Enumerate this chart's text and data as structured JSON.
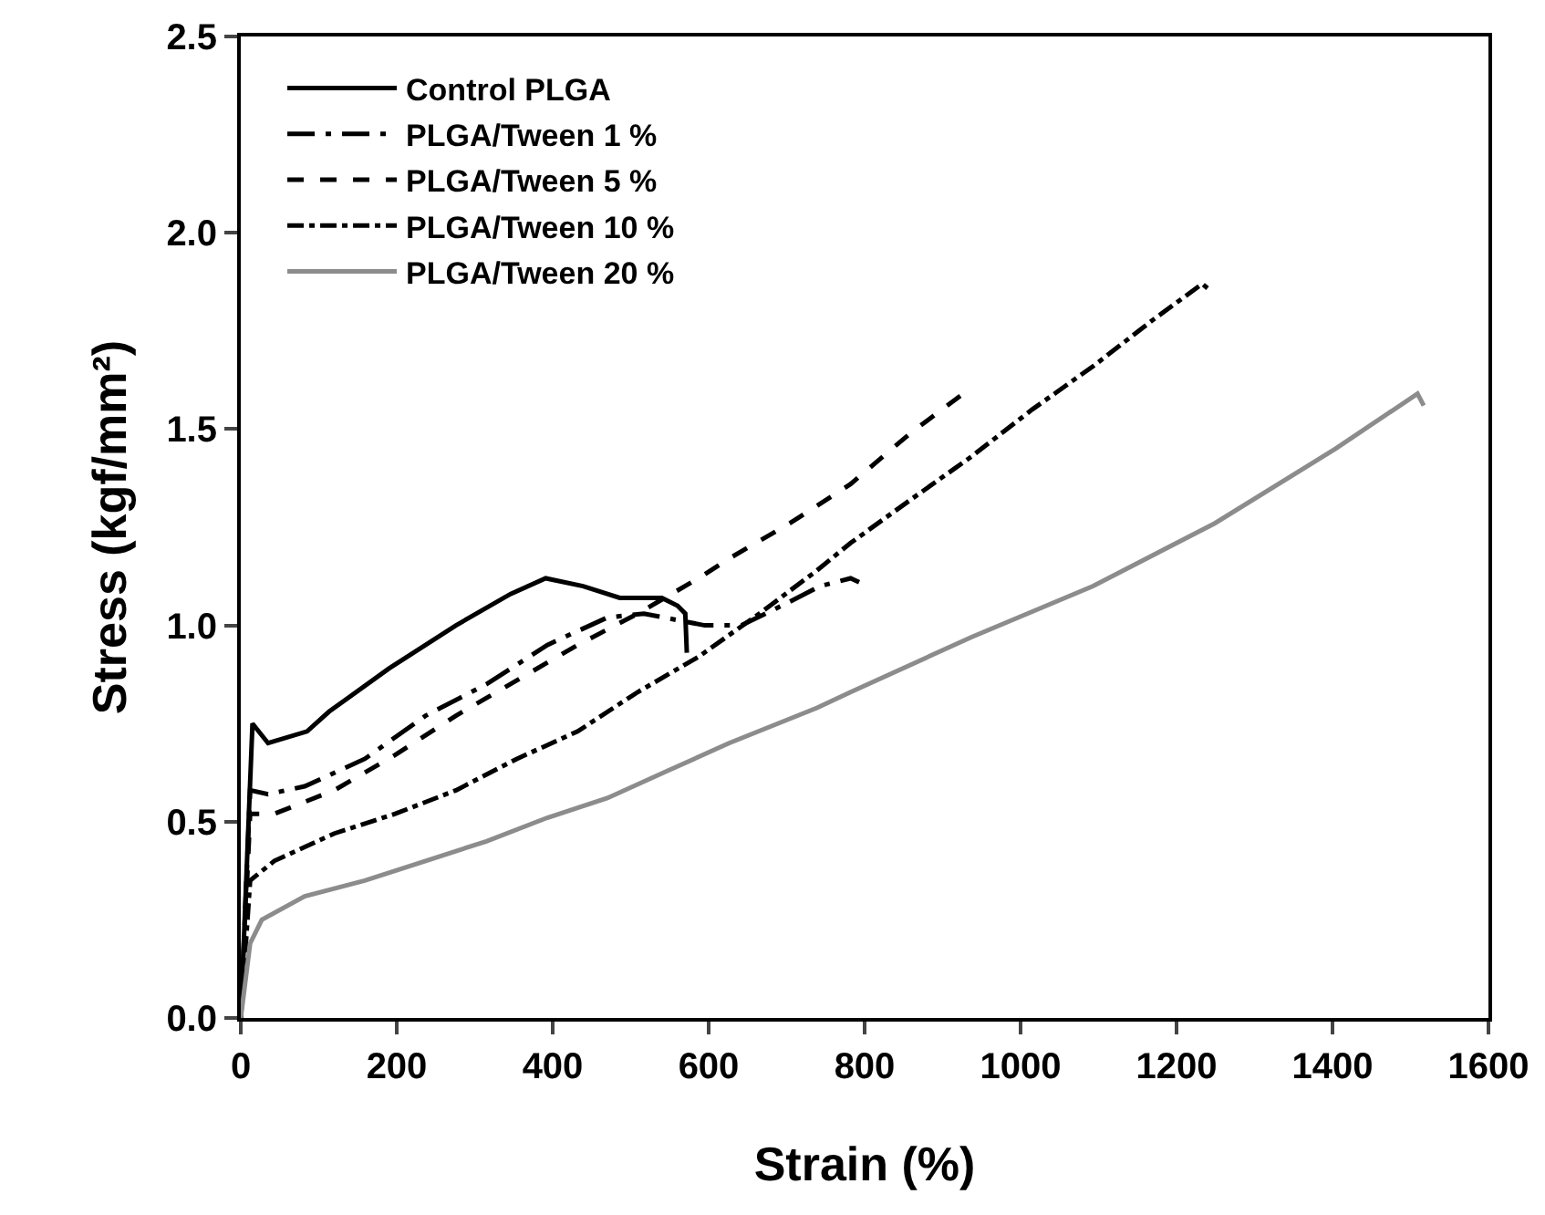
{
  "chart_data": {
    "type": "line",
    "xlabel": "Strain (%)",
    "ylabel": "Stress (kgf/mm²)",
    "xlim": [
      0,
      1600
    ],
    "xticks": [
      0,
      200,
      400,
      600,
      800,
      1000,
      1200,
      1400,
      1600
    ],
    "ylim": [
      0,
      2.5
    ],
    "yticks": [
      {
        "value": 0,
        "label": "0.0"
      },
      {
        "value": 0.5,
        "label": "0.5"
      },
      {
        "value": 1,
        "label": "1.0"
      },
      {
        "value": 1.5,
        "label": "1.5"
      },
      {
        "value": 2,
        "label": "2.0"
      },
      {
        "value": 2.5,
        "label": "2.5"
      }
    ],
    "grid": false,
    "legend": "top left",
    "marker": "none",
    "series": [
      {
        "name": "Control PLGA",
        "color": "#000000",
        "line_style": "solid",
        "x": [
          0,
          15,
          35,
          85,
          113,
          190,
          276,
          346,
          391,
          439,
          486,
          540,
          560,
          570,
          572
        ],
        "values": [
          0,
          0.75,
          0.7,
          0.73,
          0.78,
          0.89,
          1.0,
          1.08,
          1.12,
          1.1,
          1.07,
          1.07,
          1.05,
          1.03,
          0.93
        ]
      },
      {
        "name": "PLGA/Tween 1 %",
        "color": "#000000",
        "line_style": "longdashdot",
        "x": [
          0,
          12,
          35,
          82,
          159,
          237,
          315,
          393,
          470,
          517,
          595,
          642,
          704,
          743,
          782,
          793
        ],
        "values": [
          0,
          0.58,
          0.57,
          0.59,
          0.66,
          0.77,
          0.85,
          0.95,
          1.02,
          1.03,
          1.0,
          1.0,
          1.06,
          1.1,
          1.12,
          1.11
        ]
      },
      {
        "name": "PLGA/Tween 5 %",
        "color": "#000000",
        "line_style": "dash",
        "x": [
          0,
          12,
          43,
          120,
          198,
          276,
          354,
          432,
          509,
          587,
          626,
          704,
          782,
          859,
          933
        ],
        "values": [
          0,
          0.52,
          0.52,
          0.58,
          0.67,
          0.77,
          0.86,
          0.95,
          1.03,
          1.12,
          1.17,
          1.26,
          1.36,
          1.49,
          1.6
        ]
      },
      {
        "name": "PLGA/Tween 10 %",
        "color": "#000000",
        "line_style": "dashdot",
        "x": [
          0,
          12,
          43,
          120,
          198,
          276,
          354,
          432,
          509,
          587,
          665,
          739,
          782,
          859,
          937,
          1015,
          1093,
          1171,
          1233,
          1245
        ],
        "values": [
          0,
          0.35,
          0.4,
          0.47,
          0.52,
          0.58,
          0.66,
          0.73,
          0.83,
          0.92,
          1.03,
          1.14,
          1.21,
          1.32,
          1.43,
          1.55,
          1.66,
          1.78,
          1.87,
          1.85
        ]
      },
      {
        "name": "PLGA/Tween 20 %",
        "color": "#8c8c8c",
        "line_style": "solid",
        "x": [
          0,
          12,
          27,
          82,
          159,
          237,
          315,
          393,
          470,
          548,
          626,
          739,
          782,
          937,
          1093,
          1249,
          1404,
          1509,
          1517
        ],
        "values": [
          0,
          0.19,
          0.25,
          0.31,
          0.35,
          0.4,
          0.45,
          0.51,
          0.56,
          0.63,
          0.7,
          0.79,
          0.83,
          0.97,
          1.1,
          1.26,
          1.45,
          1.59,
          1.56
        ]
      }
    ]
  }
}
